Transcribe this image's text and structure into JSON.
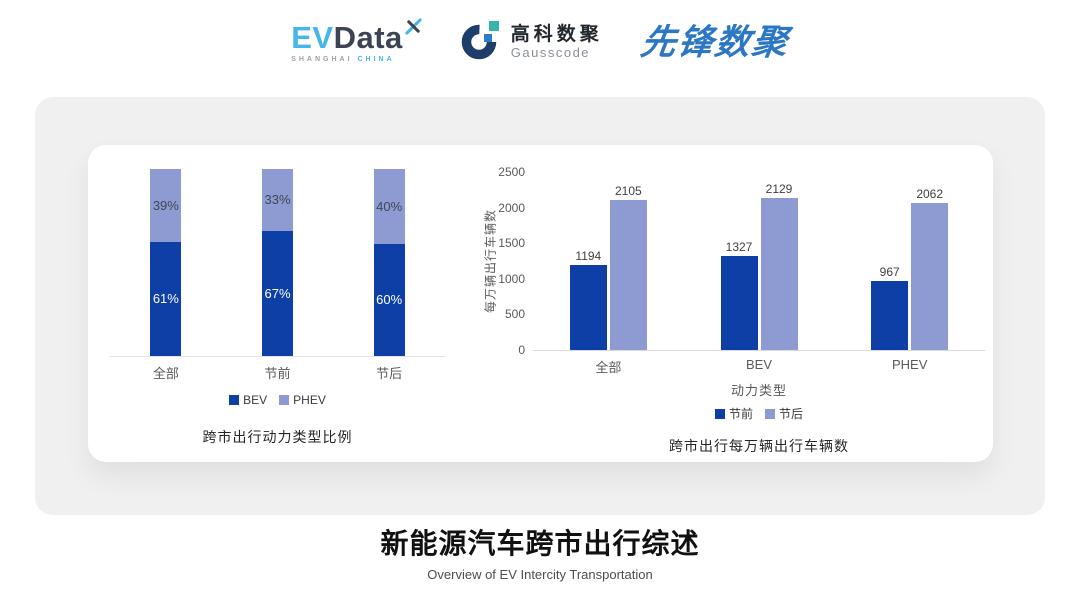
{
  "logos": {
    "evdata": {
      "ev": "EV",
      "data": "Data",
      "sub_left": "SHANGHAI",
      "sub_right": "CHINA",
      "cyan": "#45b6e8",
      "dark": "#3c4454"
    },
    "gausscode": {
      "cn": "高科数聚",
      "en": "Gausscode",
      "navy": "#1d3e6b",
      "teal": "#35b5ad",
      "blue": "#2d7cc9"
    },
    "pioneer": {
      "text": "先锋数聚",
      "color": "#2b77c4"
    }
  },
  "chart_data": [
    {
      "type": "bar",
      "subtype": "stacked-100",
      "title": "跨市出行动力类型比例",
      "categories": [
        "全部",
        "节前",
        "节后"
      ],
      "series": [
        {
          "name": "BEV",
          "color": "#0d3fa6",
          "label_color": "#ffffff",
          "values": [
            61,
            67,
            60
          ]
        },
        {
          "name": "PHEV",
          "color": "#8e9bd3",
          "label_color": "#3f4657",
          "values": [
            39,
            33,
            40
          ]
        }
      ],
      "value_suffix": "%",
      "ylim": [
        0,
        100
      ],
      "legend_position": "bottom",
      "grid": false
    },
    {
      "type": "bar",
      "subtype": "grouped",
      "title": "跨市出行每万辆出行车辆数",
      "categories": [
        "全部",
        "BEV",
        "PHEV"
      ],
      "series": [
        {
          "name": "节前",
          "color": "#0d3fa6",
          "values": [
            1194,
            1327,
            967
          ]
        },
        {
          "name": "节后",
          "color": "#8e9bd3",
          "values": [
            2105,
            2129,
            2062
          ]
        }
      ],
      "xlabel": "动力类型",
      "ylabel": "每万辆出行车辆数",
      "ylim": [
        0,
        2500
      ],
      "yticks": [
        0,
        500,
        1000,
        1500,
        2000,
        2500
      ],
      "legend_position": "bottom",
      "grid": false
    }
  ],
  "footer": {
    "title": "新能源汽车跨市出行综述",
    "subtitle": "Overview of EV Intercity Transportation"
  }
}
